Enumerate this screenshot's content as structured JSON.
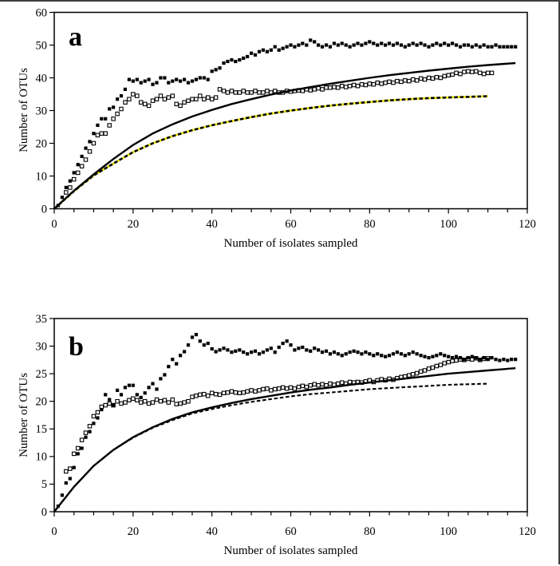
{
  "page": {
    "background": "#ffffff",
    "border_color": "#3f3f3f"
  },
  "figure": {
    "xlabel": "Number of isolates sampled",
    "ylabel": "Number of OTUs",
    "panel_labels": [
      "a",
      "b"
    ]
  },
  "chart_data": [
    {
      "type": "scatter",
      "panel_label": "a",
      "title": "",
      "xlabel": "Number of isolates sampled",
      "ylabel": "Number of OTUs",
      "xlim": [
        0,
        120
      ],
      "ylim": [
        0,
        60
      ],
      "xticks": [
        0,
        20,
        40,
        60,
        80,
        100,
        120
      ],
      "xtick_minor_step": 5,
      "yticks": [
        0,
        10,
        20,
        30,
        40,
        50,
        60
      ],
      "grid": false,
      "legend": null,
      "series": [
        {
          "name": "filled-squares-series",
          "kind": "scatter",
          "marker": "filled-square",
          "color": "#000000",
          "x_start": 1,
          "x_step": 1,
          "y": [
            1,
            3.5,
            6.5,
            8.5,
            11,
            13.5,
            16,
            18.5,
            20.5,
            23,
            25.5,
            27.5,
            27.5,
            30.5,
            31,
            33.5,
            34.5,
            36.5,
            39.5,
            39,
            39.5,
            38.5,
            39,
            39.5,
            38,
            38.5,
            40,
            40,
            38.5,
            39,
            39.5,
            39,
            39.5,
            38.5,
            39,
            39.5,
            40,
            40,
            39.5,
            42,
            42.5,
            43,
            44.5,
            45,
            45.5,
            45,
            45.5,
            46,
            46.5,
            47.5,
            47,
            48,
            48.5,
            48,
            48.5,
            49.5,
            48.5,
            49,
            49.5,
            50,
            49.5,
            50,
            50.5,
            50,
            51.5,
            51,
            50,
            49.5,
            50,
            49.5,
            50.5,
            50,
            50.5,
            50,
            49.5,
            50,
            50.5,
            50,
            50.5,
            51,
            50.5,
            50,
            50.5,
            50,
            50.5,
            50,
            50.5,
            50,
            49.5,
            50,
            50.5,
            50,
            50.5,
            50,
            49.5,
            50,
            50.5,
            50,
            50.5,
            50,
            50.5,
            50,
            49.5,
            50,
            50,
            49.5,
            50,
            49.5,
            50,
            49.5,
            49.5,
            50,
            49.5,
            49.5,
            49.5,
            49.5,
            49.5
          ]
        },
        {
          "name": "open-squares-series",
          "kind": "scatter",
          "marker": "open-square",
          "color": "#000000",
          "x_start": 3,
          "x_step": 1,
          "y": [
            5,
            6.5,
            9,
            11,
            13,
            15,
            17.5,
            20,
            22.5,
            23,
            23,
            25.5,
            27.5,
            29,
            30.5,
            32.5,
            33.5,
            35,
            34.5,
            32.5,
            32,
            31.5,
            33,
            33.5,
            34.5,
            33.5,
            34,
            34.5,
            32,
            31.5,
            32.5,
            33,
            33.5,
            33.5,
            34.5,
            33.5,
            34,
            33.5,
            34,
            36.5,
            36,
            35.5,
            36,
            35.5,
            35.5,
            36,
            35.5,
            35.5,
            36,
            35.5,
            35.5,
            36,
            35.5,
            36,
            35.5,
            35.5,
            36,
            35.8,
            36,
            36.2,
            36,
            36.5,
            36.2,
            36.5,
            36.8,
            36.5,
            37,
            37,
            37.2,
            37,
            37.5,
            37.2,
            37.5,
            37.8,
            37.5,
            38,
            37.8,
            38.2,
            38,
            38.5,
            38.2,
            38.5,
            38.8,
            38.5,
            39,
            38.8,
            39.2,
            39,
            39.5,
            39.2,
            39.8,
            39.5,
            40,
            39.8,
            40.2,
            40,
            40.5,
            40.8,
            41,
            41.5,
            41.2,
            41.8,
            42,
            41.8,
            42,
            41.5,
            41.2,
            41.5,
            41.5
          ]
        },
        {
          "name": "solid-line-series",
          "kind": "line",
          "style": "solid",
          "color": "#000000",
          "width": 2.4,
          "points": [
            [
              0,
              0
            ],
            [
              5,
              5.5
            ],
            [
              10,
              10.5
            ],
            [
              15,
              15.2
            ],
            [
              20,
              19.5
            ],
            [
              25,
              23
            ],
            [
              30,
              25.8
            ],
            [
              35,
              28.2
            ],
            [
              40,
              30.2
            ],
            [
              45,
              32
            ],
            [
              50,
              33.5
            ],
            [
              55,
              34.9
            ],
            [
              60,
              36.1
            ],
            [
              65,
              37.2
            ],
            [
              70,
              38.2
            ],
            [
              75,
              39.1
            ],
            [
              80,
              40
            ],
            [
              85,
              40.8
            ],
            [
              90,
              41.5
            ],
            [
              95,
              42.2
            ],
            [
              100,
              42.8
            ],
            [
              105,
              43.4
            ],
            [
              110,
              43.9
            ],
            [
              117,
              44.5
            ]
          ]
        },
        {
          "name": "dashed-line-series",
          "kind": "line",
          "style": "dashed",
          "color": "#000000",
          "underlay_color": "#ece400",
          "width": 2.6,
          "points": [
            [
              0,
              0
            ],
            [
              5,
              5.4
            ],
            [
              10,
              10.2
            ],
            [
              15,
              13.8
            ],
            [
              20,
              17.3
            ],
            [
              25,
              20
            ],
            [
              30,
              22.2
            ],
            [
              35,
              24
            ],
            [
              40,
              25.5
            ],
            [
              45,
              26.8
            ],
            [
              50,
              28
            ],
            [
              55,
              29.1
            ],
            [
              60,
              30
            ],
            [
              65,
              30.8
            ],
            [
              70,
              31.5
            ],
            [
              75,
              32.1
            ],
            [
              80,
              32.6
            ],
            [
              85,
              33.1
            ],
            [
              90,
              33.5
            ],
            [
              95,
              33.8
            ],
            [
              100,
              34
            ],
            [
              105,
              34.2
            ],
            [
              110,
              34.4
            ]
          ]
        }
      ]
    },
    {
      "type": "scatter",
      "panel_label": "b",
      "title": "",
      "xlabel": "Number of isolates sampled",
      "ylabel": "Number of OTUs",
      "xlim": [
        0,
        120
      ],
      "ylim": [
        0,
        35
      ],
      "xticks": [
        0,
        20,
        40,
        60,
        80,
        100,
        120
      ],
      "xtick_minor_step": 5,
      "yticks": [
        0,
        5,
        10,
        15,
        20,
        25,
        30,
        35
      ],
      "grid": false,
      "legend": null,
      "series": [
        {
          "name": "filled-squares-series",
          "kind": "scatter",
          "marker": "filled-square",
          "color": "#000000",
          "x_start": 1,
          "x_step": 1,
          "y": [
            1,
            3,
            5.2,
            6,
            8,
            10.5,
            11.5,
            13.5,
            14.5,
            16,
            17,
            18.5,
            21.2,
            20.3,
            19.3,
            22,
            21.2,
            22.5,
            22.9,
            22.9,
            21.2,
            20.7,
            21.5,
            22.5,
            23.2,
            22.2,
            24.1,
            24.8,
            26.3,
            27.6,
            26.8,
            28.3,
            29,
            30.2,
            31.6,
            32.1,
            30.9,
            30.2,
            30.5,
            29.5,
            29,
            29.3,
            29.6,
            29.3,
            28.9,
            29.1,
            29.3,
            28.9,
            28.6,
            28.9,
            29.1,
            28.6,
            28.9,
            29.3,
            29.6,
            28.9,
            29.8,
            30.5,
            30.9,
            30.2,
            29.3,
            29.6,
            29.8,
            29.3,
            29.1,
            29.6,
            29.3,
            28.9,
            29.1,
            28.6,
            28.9,
            28.6,
            28.3,
            28.6,
            28.9,
            29.1,
            28.9,
            28.6,
            28.9,
            28.6,
            28.3,
            28.6,
            28.3,
            28.1,
            28.3,
            28.6,
            28.9,
            28.6,
            28.3,
            28.6,
            28.9,
            28.6,
            28.3,
            28.1,
            27.9,
            28.1,
            28.3,
            28.6,
            28.3,
            28.1,
            27.9,
            28.1,
            27.9,
            27.6,
            27.9,
            28.1,
            27.9,
            27.6,
            27.9,
            27.6,
            27.9,
            27.6,
            27.4,
            27.6,
            27.4,
            27.6,
            27.6
          ]
        },
        {
          "name": "open-squares-series",
          "kind": "scatter",
          "marker": "open-square",
          "color": "#000000",
          "x_start": 3,
          "x_step": 1,
          "y": [
            7.3,
            7.8,
            10.5,
            11.5,
            13,
            14.3,
            15.5,
            17.3,
            18,
            19,
            19.3,
            19.6,
            19.3,
            20,
            19.6,
            19.8,
            20.2,
            20.5,
            20.2,
            19.8,
            20,
            19.6,
            19.8,
            20.3,
            20,
            20.2,
            19.8,
            20.3,
            19.5,
            19.6,
            19.8,
            20,
            20.8,
            21,
            21.2,
            21.3,
            21,
            21.5,
            21.3,
            21.2,
            21.5,
            21.6,
            21.8,
            21.6,
            21.5,
            21.6,
            21.8,
            22,
            21.8,
            22,
            22.2,
            22.3,
            22,
            22.2,
            22.3,
            22.5,
            22.3,
            22.5,
            22.3,
            22.6,
            22.8,
            22.6,
            22.9,
            23.1,
            22.9,
            23.1,
            22.9,
            23.2,
            23,
            23.2,
            23.4,
            23.2,
            23.5,
            23.4,
            23.5,
            23.4,
            23.6,
            23.8,
            23.5,
            23.8,
            24,
            23.8,
            24.1,
            23.9,
            24.2,
            24.4,
            24.5,
            24.7,
            24.9,
            25.1,
            25.4,
            25.6,
            25.9,
            26.1,
            26.4,
            26.6,
            26.9,
            27.1,
            27.3,
            27.4,
            27.6,
            27.5,
            27.7,
            27.6,
            27.8,
            27.5,
            27.7,
            27.8
          ]
        },
        {
          "name": "solid-line-series",
          "kind": "line",
          "style": "solid",
          "color": "#000000",
          "width": 2.4,
          "points": [
            [
              0,
              0
            ],
            [
              5,
              4.5
            ],
            [
              10,
              8.3
            ],
            [
              15,
              11.2
            ],
            [
              20,
              13.5
            ],
            [
              25,
              15.3
            ],
            [
              30,
              16.8
            ],
            [
              35,
              18
            ],
            [
              40,
              18.9
            ],
            [
              45,
              19.7
            ],
            [
              50,
              20.4
            ],
            [
              55,
              21
            ],
            [
              60,
              21.6
            ],
            [
              65,
              22.1
            ],
            [
              70,
              22.5
            ],
            [
              75,
              23
            ],
            [
              80,
              23.4
            ],
            [
              85,
              23.8
            ],
            [
              90,
              24.2
            ],
            [
              95,
              24.6
            ],
            [
              100,
              25
            ],
            [
              105,
              25.3
            ],
            [
              110,
              25.6
            ],
            [
              117,
              26
            ]
          ]
        },
        {
          "name": "dashed-line-series",
          "kind": "line",
          "style": "dashed",
          "color": "#000000",
          "underlay_color": null,
          "width": 2.1,
          "points": [
            [
              0,
              0
            ],
            [
              5,
              4.5
            ],
            [
              10,
              8.3
            ],
            [
              15,
              11.2
            ],
            [
              20,
              13.4
            ],
            [
              25,
              15.2
            ],
            [
              30,
              16.6
            ],
            [
              35,
              17.8
            ],
            [
              40,
              18.6
            ],
            [
              45,
              19.3
            ],
            [
              50,
              19.9
            ],
            [
              55,
              20.4
            ],
            [
              60,
              20.9
            ],
            [
              65,
              21.3
            ],
            [
              70,
              21.6
            ],
            [
              75,
              21.9
            ],
            [
              80,
              22.2
            ],
            [
              85,
              22.4
            ],
            [
              90,
              22.6
            ],
            [
              95,
              22.8
            ],
            [
              100,
              23
            ],
            [
              105,
              23.1
            ],
            [
              110,
              23.2
            ]
          ]
        }
      ]
    }
  ]
}
